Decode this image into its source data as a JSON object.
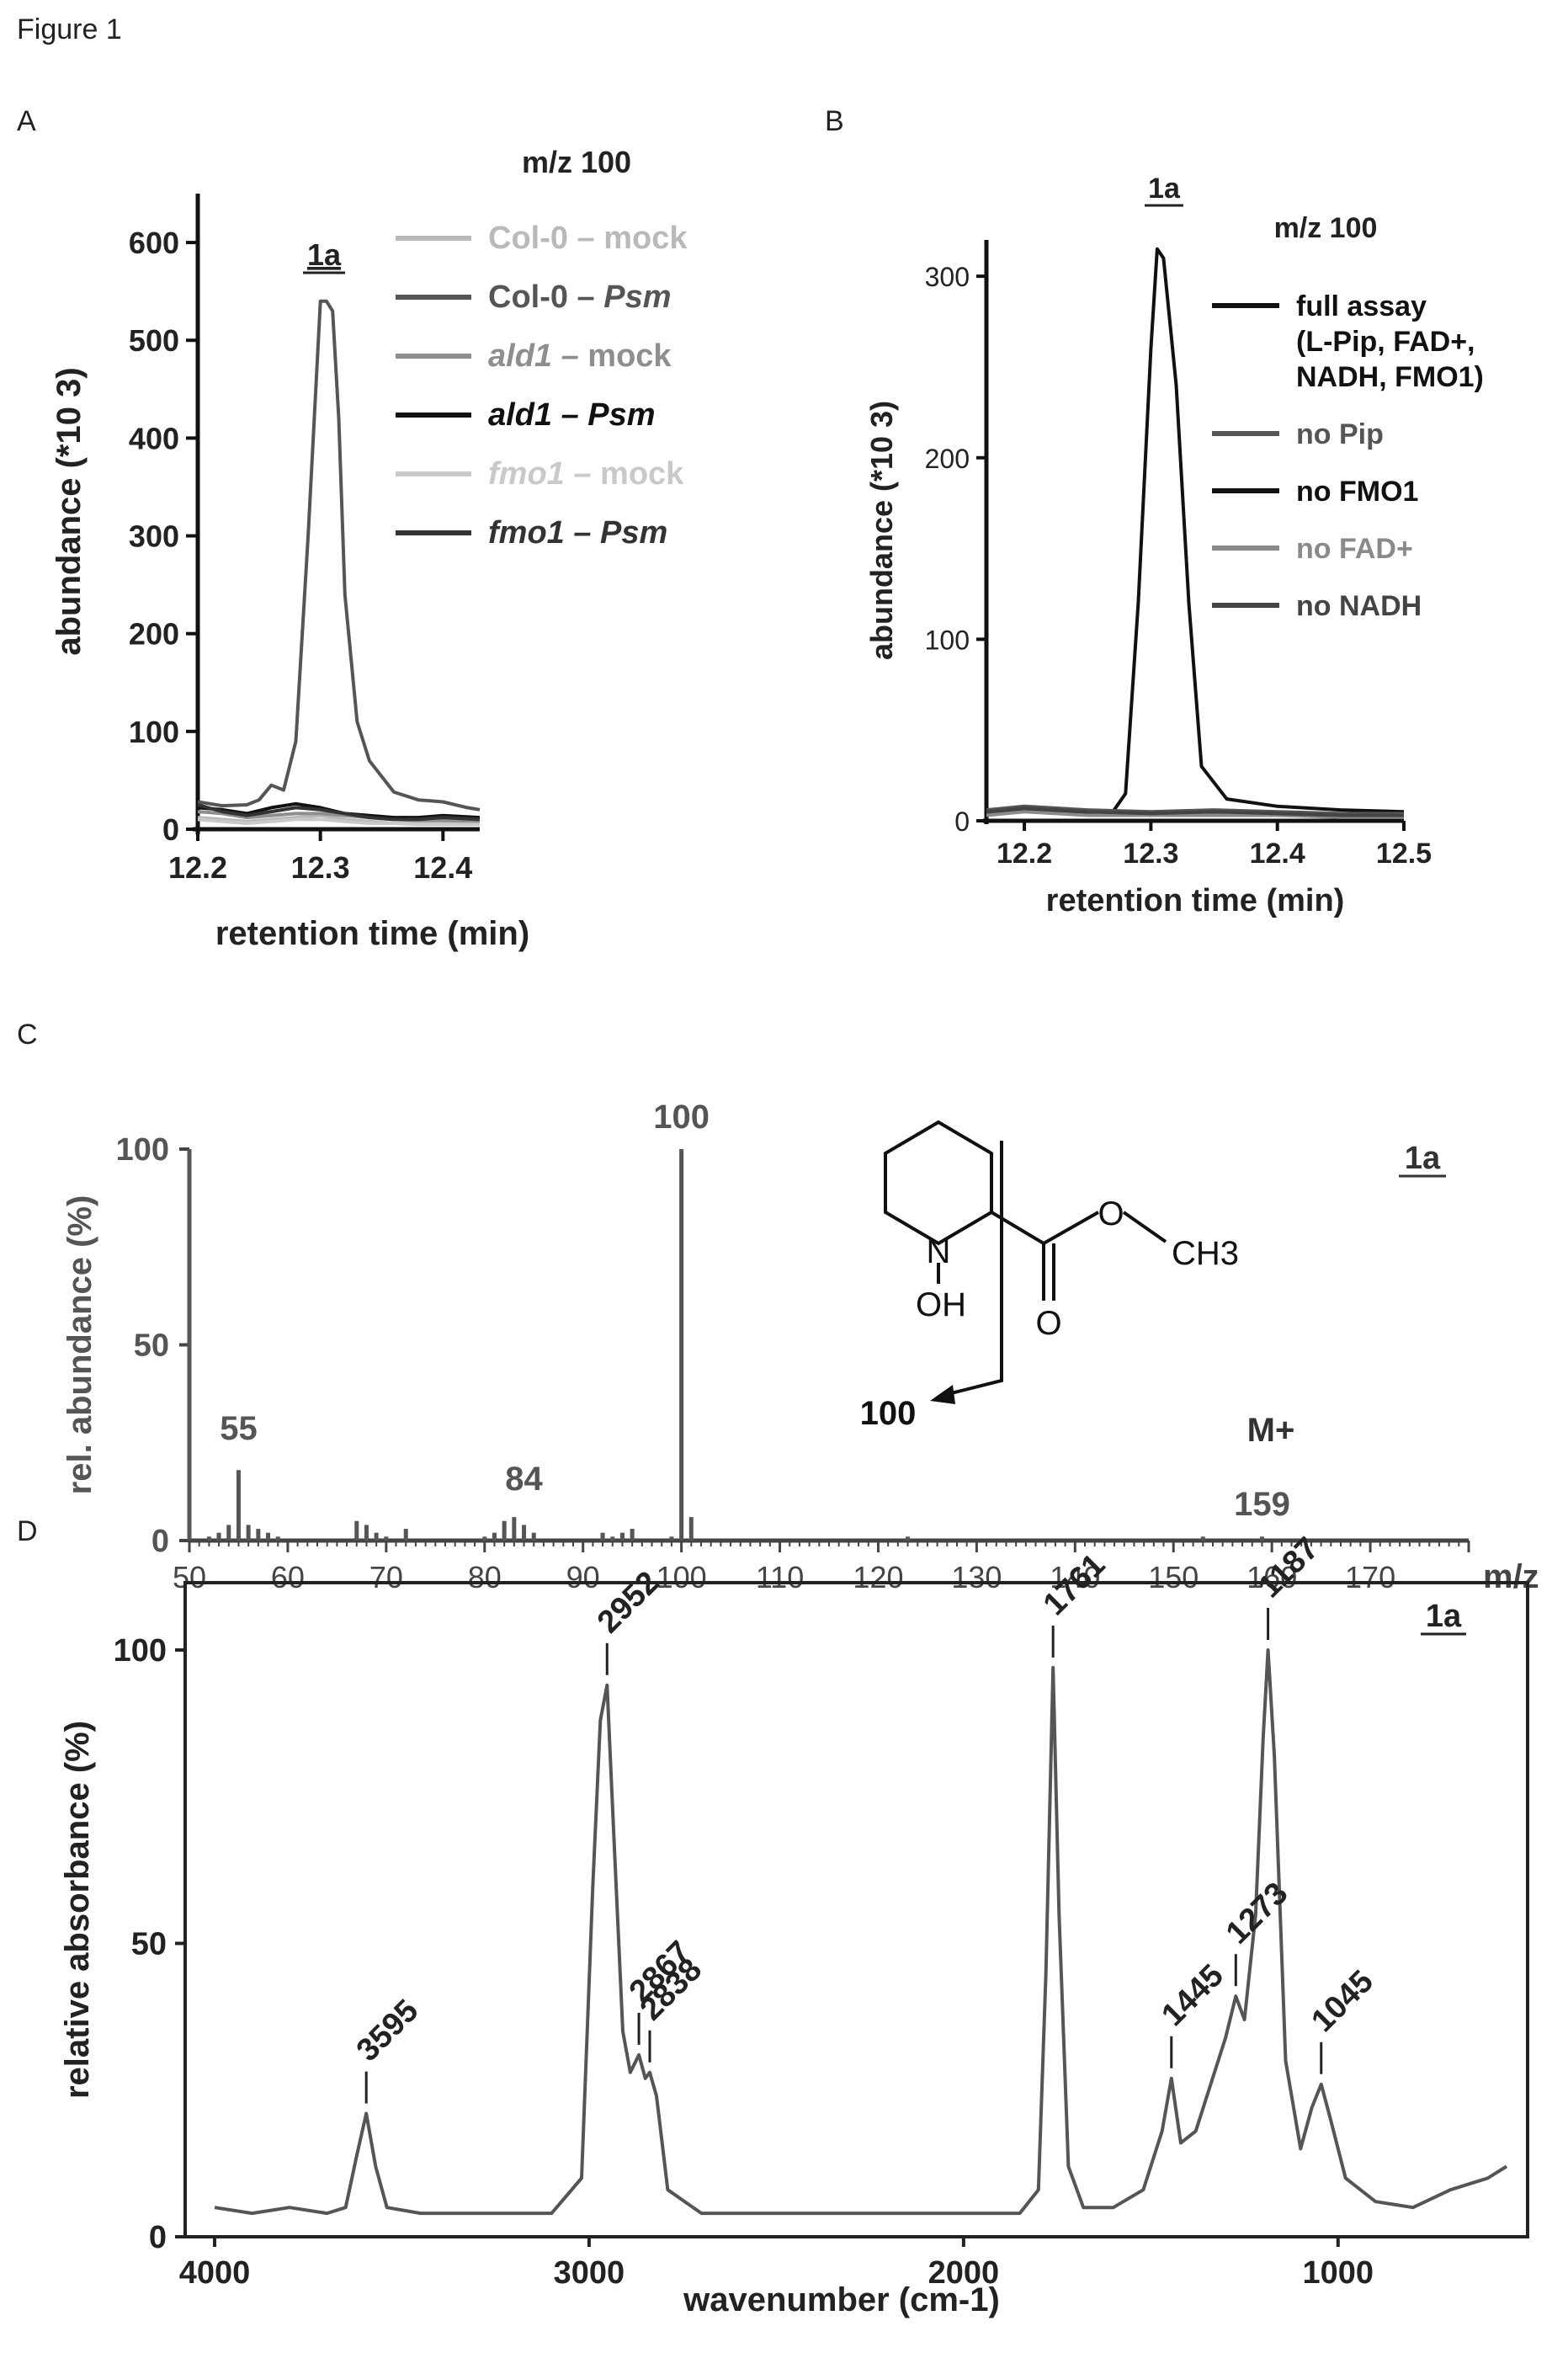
{
  "figure_title": "Figure 1",
  "chart_data": [
    {
      "panel": "A",
      "type": "line",
      "title": "m/z 100",
      "peak_label": "1a",
      "xlabel": "retention time (min)",
      "ylabel": "abundance (*10 3)",
      "xlim": [
        12.2,
        12.43
      ],
      "ylim": [
        0,
        650
      ],
      "xticks": [
        "12.2",
        "12.3",
        "12.4"
      ],
      "yticks": [
        "0",
        "100",
        "200",
        "300",
        "400",
        "500",
        "600"
      ],
      "legend_position": "top-right",
      "series": [
        {
          "name": "Col-0 – mock",
          "color": "#b9b9b9",
          "x": [
            12.2,
            12.22,
            12.24,
            12.26,
            12.28,
            12.3,
            12.32,
            12.34,
            12.36,
            12.38,
            12.4,
            12.43
          ],
          "y": [
            12,
            10,
            8,
            10,
            12,
            14,
            10,
            8,
            6,
            6,
            6,
            6
          ]
        },
        {
          "name": "Col-0 – Psm",
          "color": "#555555",
          "x": [
            12.2,
            12.22,
            12.24,
            12.25,
            12.26,
            12.27,
            12.28,
            12.29,
            12.3,
            12.305,
            12.31,
            12.315,
            12.32,
            12.33,
            12.34,
            12.36,
            12.38,
            12.4,
            12.42,
            12.43
          ],
          "y": [
            28,
            24,
            25,
            30,
            45,
            40,
            90,
            300,
            540,
            540,
            530,
            420,
            240,
            110,
            70,
            38,
            30,
            28,
            22,
            20
          ]
        },
        {
          "name": "ald1 – mock",
          "color": "#8e8e8e",
          "x": [
            12.2,
            12.22,
            12.24,
            12.26,
            12.28,
            12.3,
            12.32,
            12.34,
            12.36,
            12.38,
            12.4,
            12.43
          ],
          "y": [
            18,
            16,
            12,
            14,
            16,
            16,
            14,
            12,
            10,
            9,
            9,
            8
          ]
        },
        {
          "name": "ald1 – Psm",
          "color": "#111111",
          "x": [
            12.2,
            12.22,
            12.24,
            12.26,
            12.28,
            12.3,
            12.32,
            12.34,
            12.36,
            12.38,
            12.4,
            12.43
          ],
          "y": [
            22,
            20,
            16,
            22,
            26,
            22,
            16,
            14,
            12,
            12,
            14,
            12
          ]
        },
        {
          "name": "fmo1 – mock",
          "color": "#c9c9c9",
          "x": [
            12.2,
            12.22,
            12.24,
            12.26,
            12.28,
            12.3,
            12.32,
            12.34,
            12.36,
            12.38,
            12.4,
            12.43
          ],
          "y": [
            10,
            8,
            6,
            8,
            10,
            10,
            8,
            6,
            6,
            5,
            5,
            5
          ]
        },
        {
          "name": "fmo1 – Psm",
          "color": "#333333",
          "x": [
            12.2,
            12.22,
            12.24,
            12.26,
            12.28,
            12.3,
            12.32,
            12.34,
            12.36,
            12.38,
            12.4,
            12.43
          ],
          "y": [
            25,
            18,
            14,
            18,
            22,
            20,
            16,
            12,
            10,
            10,
            12,
            10
          ]
        }
      ]
    },
    {
      "panel": "B",
      "type": "line",
      "title": "m/z 100",
      "peak_label": "1a",
      "xlabel": "retention time (min)",
      "ylabel": "abundance (*10 3)",
      "xlim": [
        12.17,
        12.5
      ],
      "ylim": [
        0,
        320
      ],
      "xticks": [
        "12.2",
        "12.3",
        "12.4",
        "12.5"
      ],
      "yticks": [
        "0",
        "100",
        "200",
        "300"
      ],
      "legend_position": "top-right",
      "series": [
        {
          "name": "full assay (L-Pip, FAD+, NADH, FMO1)",
          "legend_lines": [
            "full assay",
            "(L-Pip, FAD+,",
            "NADH, FMO1)"
          ],
          "color": "#111111",
          "x": [
            12.17,
            12.2,
            12.24,
            12.27,
            12.28,
            12.29,
            12.3,
            12.305,
            12.31,
            12.32,
            12.33,
            12.34,
            12.36,
            12.4,
            12.45,
            12.5
          ],
          "y": [
            4,
            6,
            5,
            5,
            15,
            120,
            260,
            315,
            310,
            240,
            120,
            30,
            12,
            8,
            6,
            5
          ]
        },
        {
          "name": "no Pip",
          "color": "#555555",
          "x": [
            12.17,
            12.2,
            12.25,
            12.3,
            12.35,
            12.4,
            12.45,
            12.5
          ],
          "y": [
            6,
            8,
            6,
            5,
            6,
            5,
            4,
            4
          ]
        },
        {
          "name": "no FMO1",
          "color": "#111111",
          "x": [
            12.17,
            12.2,
            12.25,
            12.3,
            12.35,
            12.4,
            12.45,
            12.5
          ],
          "y": [
            4,
            6,
            4,
            3,
            4,
            3,
            3,
            3
          ]
        },
        {
          "name": "no FAD+",
          "color": "#8a8a8a",
          "x": [
            12.17,
            12.2,
            12.25,
            12.3,
            12.35,
            12.4,
            12.45,
            12.5
          ],
          "y": [
            3,
            5,
            3,
            3,
            3,
            3,
            2,
            2
          ]
        },
        {
          "name": "no NADH",
          "color": "#444444",
          "x": [
            12.17,
            12.2,
            12.25,
            12.3,
            12.35,
            12.4,
            12.45,
            12.5
          ],
          "y": [
            5,
            7,
            5,
            4,
            5,
            4,
            3,
            3
          ]
        }
      ]
    },
    {
      "panel": "C",
      "type": "bar",
      "compound_label": "1a",
      "xlabel": "m/z",
      "ylabel": "rel. abundance (%)",
      "xlim": [
        50,
        180
      ],
      "ylim": [
        0,
        100
      ],
      "xticks": [
        "50",
        "60",
        "70",
        "80",
        "90",
        "100",
        "110",
        "120",
        "130",
        "140",
        "150",
        "160",
        "170"
      ],
      "yticks": [
        "0",
        "50",
        "100"
      ],
      "peak_labels": [
        "100",
        "55",
        "84",
        "159"
      ],
      "molecular_ion_label": "M+",
      "fragment_label": "100",
      "structure_atoms": [
        "N",
        "OH",
        "O",
        "O",
        "CH3"
      ],
      "x": [
        50,
        52,
        53,
        54,
        55,
        56,
        57,
        58,
        59,
        67,
        68,
        69,
        70,
        72,
        80,
        81,
        82,
        83,
        84,
        85,
        92,
        93,
        94,
        95,
        99,
        100,
        101,
        123,
        153,
        159
      ],
      "values": [
        100,
        1,
        2,
        4,
        18,
        4,
        3,
        2,
        1,
        5,
        4,
        2,
        1,
        3,
        1,
        2,
        5,
        6,
        4,
        2,
        2,
        1,
        2,
        3,
        1,
        100,
        6,
        1,
        1,
        1
      ]
    },
    {
      "panel": "D",
      "type": "line",
      "compound_label": "1a",
      "xlabel": "wavenumber (cm-1)",
      "ylabel": "relative absorbance (%)",
      "xlim": [
        4000,
        550
      ],
      "ylim": [
        0,
        100
      ],
      "xticks": [
        "4000",
        "3000",
        "2000",
        "1000"
      ],
      "yticks": [
        "0",
        "50",
        "100"
      ],
      "peak_labels": [
        "3595",
        "2952",
        "2867",
        "2838",
        "1761",
        "1445",
        "1273",
        "1187",
        "1045"
      ],
      "x": [
        4000,
        3900,
        3800,
        3700,
        3650,
        3620,
        3595,
        3570,
        3540,
        3450,
        3300,
        3100,
        3020,
        2990,
        2970,
        2952,
        2935,
        2910,
        2890,
        2867,
        2850,
        2838,
        2820,
        2790,
        2700,
        2500,
        2300,
        2100,
        1950,
        1850,
        1800,
        1780,
        1761,
        1745,
        1720,
        1680,
        1600,
        1520,
        1470,
        1445,
        1420,
        1380,
        1340,
        1300,
        1273,
        1250,
        1220,
        1200,
        1187,
        1170,
        1140,
        1100,
        1070,
        1045,
        1020,
        980,
        900,
        800,
        700,
        600,
        550
      ],
      "y": [
        5,
        4,
        5,
        4,
        5,
        14,
        21,
        12,
        5,
        4,
        4,
        4,
        10,
        60,
        88,
        94,
        70,
        35,
        28,
        31,
        27,
        28,
        24,
        8,
        4,
        4,
        4,
        4,
        4,
        4,
        8,
        45,
        97,
        55,
        12,
        5,
        5,
        8,
        18,
        27,
        16,
        18,
        26,
        34,
        41,
        37,
        55,
        85,
        100,
        82,
        30,
        15,
        22,
        26,
        20,
        10,
        6,
        5,
        8,
        10,
        12
      ]
    }
  ]
}
